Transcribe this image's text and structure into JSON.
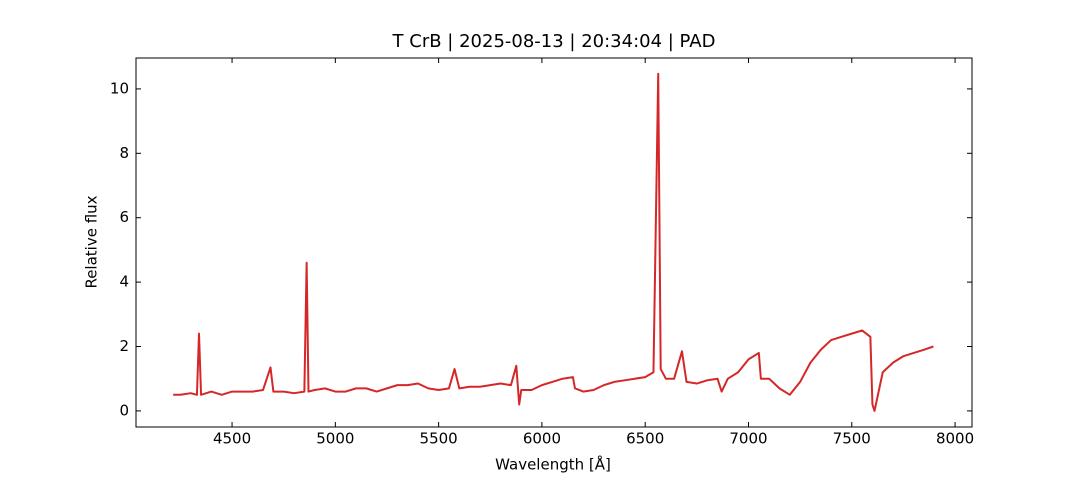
{
  "chart_data": {
    "type": "line",
    "title": "T CrB | 2025-08-13 | 20:34:04 | PAD",
    "xlabel": "Wavelength [Å]",
    "ylabel": "Relative flux",
    "xlim": [
      4035,
      8082
    ],
    "ylim": [
      -0.5,
      10.96
    ],
    "xticks": [
      4500,
      5000,
      5500,
      6000,
      6500,
      7000,
      7500,
      8000
    ],
    "yticks": [
      0,
      2,
      4,
      6,
      8,
      10
    ],
    "series": [
      {
        "color": "#d62728",
        "x": [
          4215,
          4250,
          4300,
          4330,
          4340,
          4350,
          4400,
          4450,
          4500,
          4550,
          4600,
          4650,
          4686,
          4700,
          4750,
          4800,
          4850,
          4861,
          4870,
          4900,
          4950,
          5000,
          5050,
          5100,
          5150,
          5200,
          5250,
          5300,
          5350,
          5400,
          5450,
          5500,
          5550,
          5577,
          5600,
          5650,
          5700,
          5750,
          5800,
          5850,
          5876,
          5890,
          5900,
          5950,
          6000,
          6050,
          6100,
          6150,
          6160,
          6200,
          6250,
          6300,
          6350,
          6400,
          6450,
          6500,
          6540,
          6563,
          6575,
          6600,
          6640,
          6678,
          6700,
          6750,
          6800,
          6850,
          6870,
          6900,
          6950,
          7000,
          7050,
          7060,
          7100,
          7150,
          7200,
          7250,
          7300,
          7350,
          7400,
          7450,
          7500,
          7550,
          7590,
          7600,
          7610,
          7650,
          7700,
          7750,
          7800,
          7850,
          7895
        ],
        "values": [
          0.5,
          0.5,
          0.55,
          0.5,
          2.4,
          0.5,
          0.6,
          0.5,
          0.6,
          0.6,
          0.6,
          0.65,
          1.35,
          0.6,
          0.6,
          0.55,
          0.6,
          4.6,
          0.6,
          0.65,
          0.7,
          0.6,
          0.6,
          0.7,
          0.7,
          0.6,
          0.7,
          0.8,
          0.8,
          0.85,
          0.7,
          0.65,
          0.7,
          1.3,
          0.7,
          0.75,
          0.75,
          0.8,
          0.85,
          0.8,
          1.4,
          0.2,
          0.65,
          0.65,
          0.8,
          0.9,
          1.0,
          1.05,
          0.7,
          0.6,
          0.65,
          0.8,
          0.9,
          0.95,
          1.0,
          1.05,
          1.2,
          10.47,
          1.3,
          1.0,
          1.0,
          1.85,
          0.9,
          0.85,
          0.95,
          1.0,
          0.6,
          1.0,
          1.2,
          1.6,
          1.8,
          1.0,
          1.0,
          0.7,
          0.5,
          0.9,
          1.5,
          1.9,
          2.2,
          2.3,
          2.4,
          2.5,
          2.3,
          0.2,
          0.0,
          1.2,
          1.5,
          1.7,
          1.8,
          1.9,
          2.0
        ]
      }
    ]
  }
}
